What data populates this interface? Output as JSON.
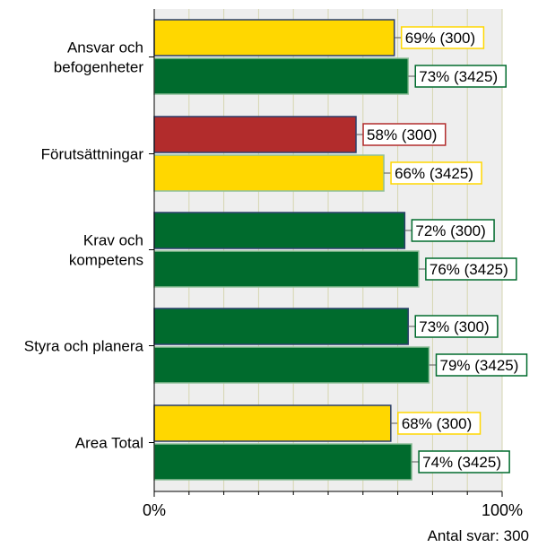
{
  "chart_data": {
    "type": "bar",
    "orientation": "horizontal",
    "categories": [
      {
        "label_lines": [
          "Ansvar och",
          "befogenheter"
        ]
      },
      {
        "label_lines": [
          "Förutsättningar"
        ]
      },
      {
        "label_lines": [
          "Krav och",
          "kompetens"
        ]
      },
      {
        "label_lines": [
          "Styra och planera"
        ]
      },
      {
        "label_lines": [
          "Area Total"
        ]
      }
    ],
    "series": [
      {
        "values": [
          69,
          58,
          72,
          73,
          68
        ],
        "labels": [
          "69% (300)",
          "58% (300)",
          "72% (300)",
          "73% (300)",
          "68% (300)"
        ],
        "colors": [
          "#FFD700",
          "#B22C2C",
          "#006B2D",
          "#006B2D",
          "#FFD700"
        ]
      },
      {
        "values": [
          73,
          66,
          76,
          79,
          74
        ],
        "labels": [
          "73% (3425)",
          "66% (3425)",
          "76% (3425)",
          "79% (3425)",
          "74% (3425)"
        ],
        "colors": [
          "#006B2D",
          "#FFD700",
          "#006B2D",
          "#006B2D",
          "#006B2D"
        ]
      }
    ],
    "xlim": [
      0,
      100
    ],
    "x_tick_labels": [
      "0%",
      "100%"
    ],
    "grid": true,
    "plot_background": "#EEEEEE",
    "gridline_color": "#D6D6B0",
    "footnote": "Antal svar: 300"
  }
}
